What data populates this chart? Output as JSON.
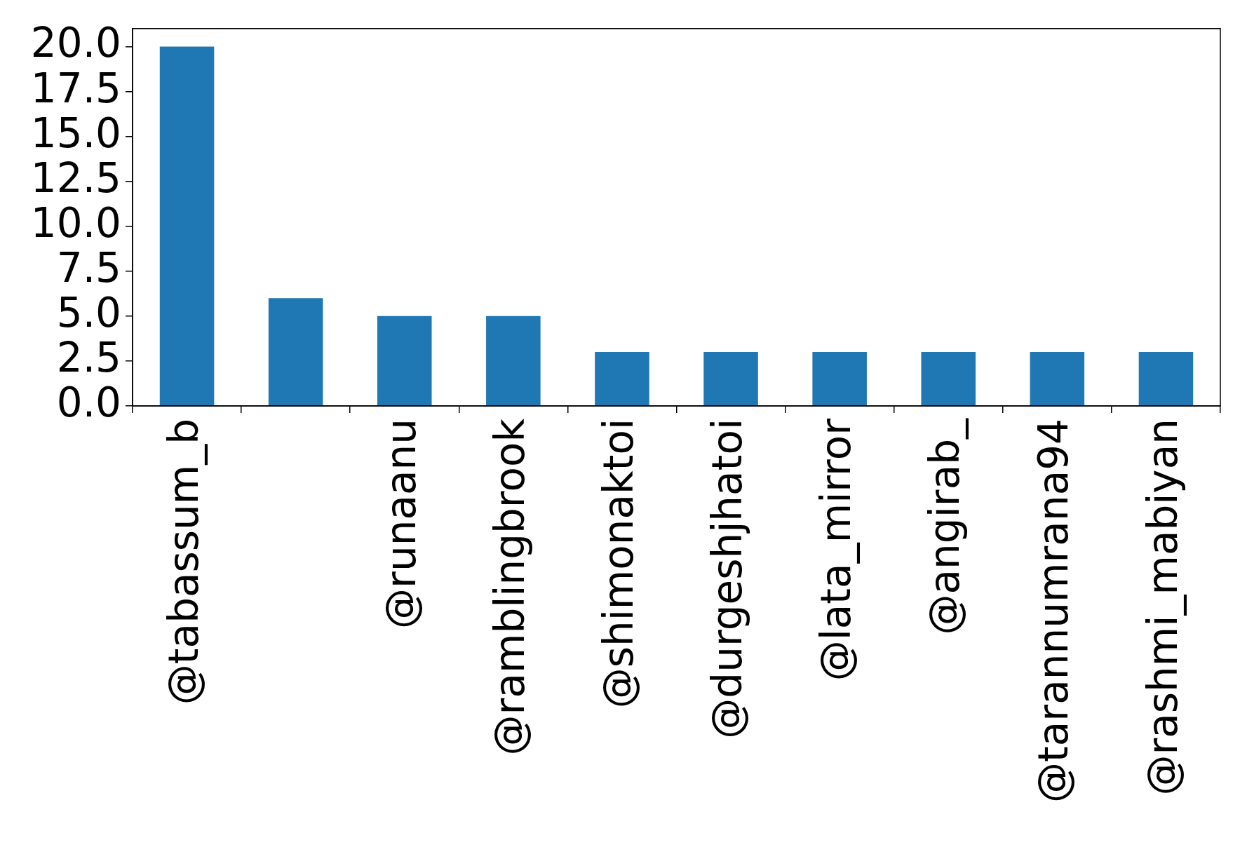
{
  "chart_data": {
    "type": "bar",
    "categories": [
      "@tabassum_b",
      null,
      "@runaanu",
      "@ramblingbrook",
      "@shimonaktoi",
      "@durgeshjhatoi",
      "@lata_mirror",
      "@angirab_",
      "@tarannumrana94",
      "@rashmi_mabiyan"
    ],
    "values": [
      20,
      6,
      5,
      5,
      3,
      3,
      3,
      3,
      3,
      3
    ],
    "color": "#1f77b4",
    "ylim": [
      0,
      21
    ],
    "yticks": [
      {
        "value": 0,
        "label": "0.0"
      },
      2.5,
      {
        "value": 5,
        "label": "5.0"
      },
      7.5,
      {
        "value": 10,
        "label": "10.0"
      },
      12.5,
      {
        "value": 15,
        "label": "15.0"
      },
      17.5,
      {
        "value": 20,
        "label": "20.0"
      }
    ]
  }
}
